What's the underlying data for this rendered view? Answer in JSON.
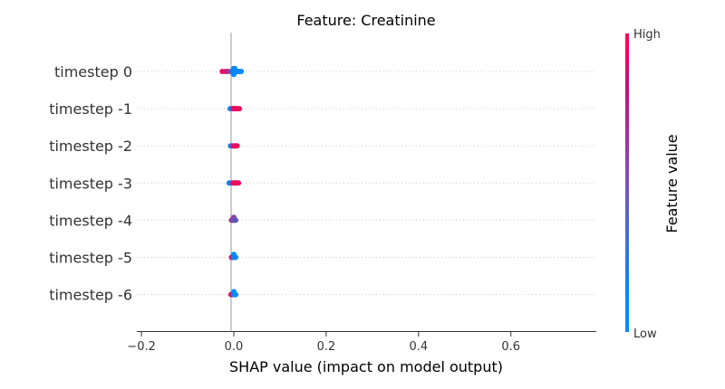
{
  "chart_data": {
    "type": "beeswarm",
    "title": "Feature: Creatinine",
    "xlabel": "SHAP value (impact on model output)",
    "xlim": [
      -0.21,
      0.785
    ],
    "x_ticks": [
      -0.2,
      0.0,
      0.2,
      0.4,
      0.6
    ],
    "x_tick_labels": [
      "−0.2",
      "0.0",
      "0.2",
      "0.4",
      "0.6"
    ],
    "zero_line": true,
    "rows": [
      {
        "label": "timestep 0",
        "points": [
          {
            "x": -0.025,
            "c": 0.9
          },
          {
            "x": -0.018,
            "c": 0.85
          },
          {
            "x": -0.012,
            "c": 0.7
          },
          {
            "x": -0.006,
            "c": 0.4
          },
          {
            "x": -0.003,
            "c": 0.2
          },
          {
            "x": 0.0,
            "c": 0.05
          },
          {
            "x": 0.0,
            "c": 0.1
          },
          {
            "x": 0.0,
            "c": 0.0
          },
          {
            "x": 0.002,
            "c": 0.05
          },
          {
            "x": 0.002,
            "c": 0.0
          },
          {
            "x": 0.004,
            "c": 0.1
          },
          {
            "x": 0.005,
            "c": 0.0
          },
          {
            "x": 0.007,
            "c": 0.05
          },
          {
            "x": 0.009,
            "c": 0.0
          },
          {
            "x": 0.012,
            "c": 0.05
          },
          {
            "x": 0.016,
            "c": 0.0
          }
        ]
      },
      {
        "label": "timestep -1",
        "points": [
          {
            "x": -0.008,
            "c": 0.05
          },
          {
            "x": -0.004,
            "c": 0.3
          },
          {
            "x": -0.001,
            "c": 0.6
          },
          {
            "x": 0.0,
            "c": 0.9
          },
          {
            "x": 0.001,
            "c": 0.95
          },
          {
            "x": 0.003,
            "c": 0.85
          },
          {
            "x": 0.005,
            "c": 0.9
          },
          {
            "x": 0.008,
            "c": 0.95
          },
          {
            "x": 0.012,
            "c": 0.9
          }
        ]
      },
      {
        "label": "timestep -2",
        "points": [
          {
            "x": -0.007,
            "c": 0.1
          },
          {
            "x": -0.003,
            "c": 0.4
          },
          {
            "x": 0.0,
            "c": 0.85
          },
          {
            "x": 0.002,
            "c": 0.95
          },
          {
            "x": 0.004,
            "c": 0.9
          },
          {
            "x": 0.007,
            "c": 0.95
          }
        ]
      },
      {
        "label": "timestep -3",
        "points": [
          {
            "x": -0.01,
            "c": 0.05
          },
          {
            "x": -0.005,
            "c": 0.2
          },
          {
            "x": -0.002,
            "c": 0.7
          },
          {
            "x": 0.0,
            "c": 0.9
          },
          {
            "x": 0.002,
            "c": 0.95
          },
          {
            "x": 0.004,
            "c": 0.85
          },
          {
            "x": 0.007,
            "c": 0.9
          },
          {
            "x": 0.01,
            "c": 0.95
          }
        ]
      },
      {
        "label": "timestep -4",
        "points": [
          {
            "x": -0.005,
            "c": 0.7
          },
          {
            "x": -0.002,
            "c": 0.55
          },
          {
            "x": 0.0,
            "c": 0.45
          },
          {
            "x": 0.0,
            "c": 0.5
          },
          {
            "x": 0.002,
            "c": 0.35
          },
          {
            "x": 0.004,
            "c": 0.4
          }
        ]
      },
      {
        "label": "timestep -5",
        "points": [
          {
            "x": -0.005,
            "c": 0.9
          },
          {
            "x": -0.002,
            "c": 0.8
          },
          {
            "x": 0.0,
            "c": 0.05
          },
          {
            "x": 0.0,
            "c": 0.0
          },
          {
            "x": 0.002,
            "c": 0.1
          },
          {
            "x": 0.004,
            "c": 0.0
          }
        ]
      },
      {
        "label": "timestep -6",
        "points": [
          {
            "x": -0.006,
            "c": 0.9
          },
          {
            "x": -0.003,
            "c": 0.85
          },
          {
            "x": 0.0,
            "c": 0.1
          },
          {
            "x": 0.0,
            "c": 0.0
          },
          {
            "x": 0.002,
            "c": 0.05
          },
          {
            "x": 0.004,
            "c": 0.0
          }
        ]
      }
    ],
    "colorbar": {
      "label": "Feature value",
      "high_label": "High",
      "low_label": "Low",
      "low_color": "#008bfb",
      "high_color": "#ff0051"
    }
  }
}
